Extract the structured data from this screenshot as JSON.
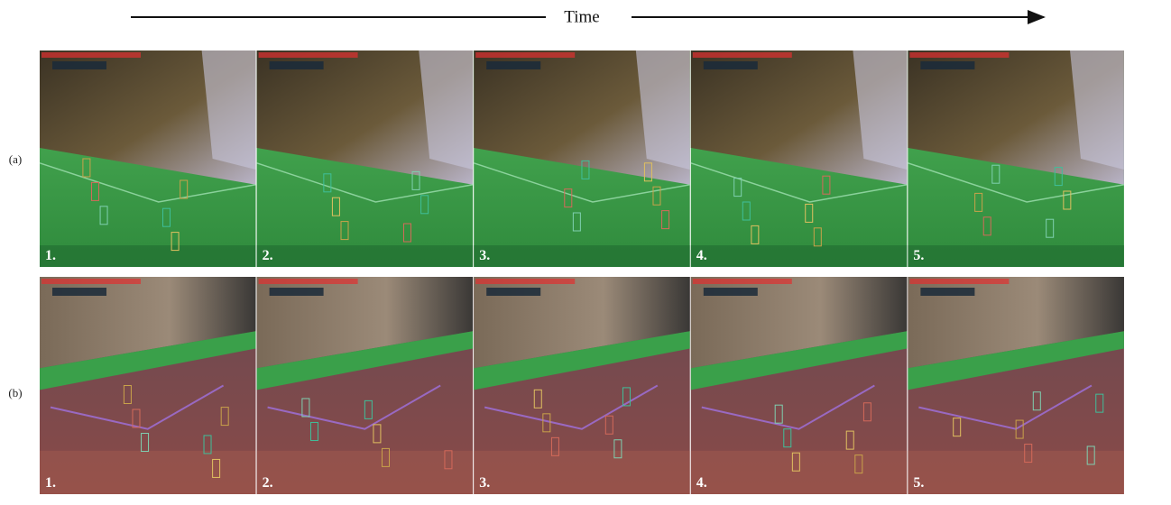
{
  "header": {
    "time_label": "Time"
  },
  "rows": [
    {
      "label": "(a)",
      "frames": [
        "1.",
        "2.",
        "3.",
        "4.",
        "5."
      ]
    },
    {
      "label": "(b)",
      "frames": [
        "1.",
        "2.",
        "3.",
        "4.",
        "5."
      ]
    }
  ]
}
